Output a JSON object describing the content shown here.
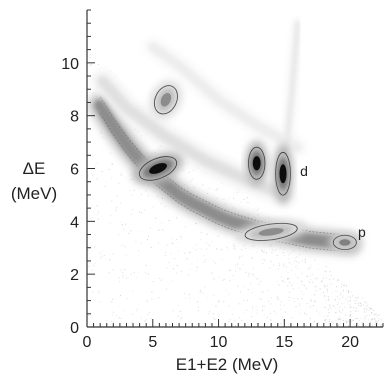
{
  "chart_data": {
    "type": "heatmap",
    "title": "",
    "xlabel": "E1+E2 (MeV)",
    "ylabel_line1": "ΔE",
    "ylabel_line2": "(MeV)",
    "xlim": [
      0,
      22.5
    ],
    "ylim": [
      0,
      12
    ],
    "xticks": [
      0,
      5,
      10,
      15,
      20
    ],
    "yticks": [
      0,
      2,
      4,
      6,
      8,
      10
    ],
    "x_minor_step": 0.5,
    "y_minor_step": 0.5,
    "colormap": "grayscale",
    "annotations": [
      {
        "text": "d",
        "x": 16.2,
        "y": 5.9
      },
      {
        "text": "p",
        "x": 20.6,
        "y": 3.6
      }
    ],
    "bands": [
      {
        "name": "",
        "points": [
          [
            1.0,
            8.4
          ],
          [
            2.0,
            7.6
          ],
          [
            3.0,
            6.9
          ],
          [
            4.0,
            6.3
          ],
          [
            5.0,
            5.8
          ],
          [
            6.0,
            5.4
          ],
          [
            7.0,
            5.0
          ],
          [
            8.0,
            4.7
          ],
          [
            9.0,
            4.45
          ],
          [
            10.0,
            4.2
          ],
          [
            11.0,
            4.0
          ],
          [
            12.0,
            3.85
          ],
          [
            13.0,
            3.7
          ],
          [
            14.0,
            3.6
          ],
          [
            15.0,
            3.5
          ],
          [
            16.0,
            3.4
          ],
          [
            17.0,
            3.3
          ],
          [
            18.0,
            3.25
          ],
          [
            19.0,
            3.2
          ],
          [
            20.0,
            3.15
          ]
        ],
        "width": 0.35,
        "intensity": 0.45
      },
      {
        "name": "",
        "points": [
          [
            1.2,
            9.3
          ],
          [
            3.0,
            8.3
          ],
          [
            6.0,
            7.2
          ],
          [
            9.0,
            6.3
          ],
          [
            12.0,
            5.6
          ],
          [
            15.0,
            5.0
          ]
        ],
        "width": 0.3,
        "intensity": 0.12
      },
      {
        "name": "",
        "points": [
          [
            5.0,
            10.6
          ],
          [
            7.0,
            9.9
          ],
          [
            10.0,
            8.6
          ],
          [
            13.0,
            7.6
          ],
          [
            16.0,
            6.8
          ]
        ],
        "width": 0.25,
        "intensity": 0.07
      },
      {
        "name": "",
        "points": [
          [
            16.0,
            11.5
          ],
          [
            15.6,
            9.0
          ],
          [
            15.2,
            7.0
          ],
          [
            15.0,
            5.5
          ]
        ],
        "width": 0.12,
        "intensity": 0.1
      }
    ],
    "blobs": [
      {
        "x": 5.4,
        "y": 6.0,
        "rx": 1.2,
        "ry": 0.28,
        "angle": -22,
        "intensity": 0.95
      },
      {
        "x": 6.0,
        "y": 8.6,
        "rx": 0.9,
        "ry": 0.3,
        "angle": -65,
        "intensity": 0.45
      },
      {
        "x": 12.9,
        "y": 6.2,
        "rx": 0.5,
        "ry": 0.45,
        "angle": 0,
        "intensity": 0.95
      },
      {
        "x": 14.9,
        "y": 5.8,
        "rx": 0.45,
        "ry": 0.6,
        "angle": 0,
        "intensity": 0.95
      },
      {
        "x": 14.0,
        "y": 3.6,
        "rx": 1.6,
        "ry": 0.22,
        "angle": -8,
        "intensity": 0.45
      },
      {
        "x": 19.6,
        "y": 3.2,
        "rx": 0.7,
        "ry": 0.2,
        "angle": 0,
        "intensity": 0.5
      }
    ]
  }
}
